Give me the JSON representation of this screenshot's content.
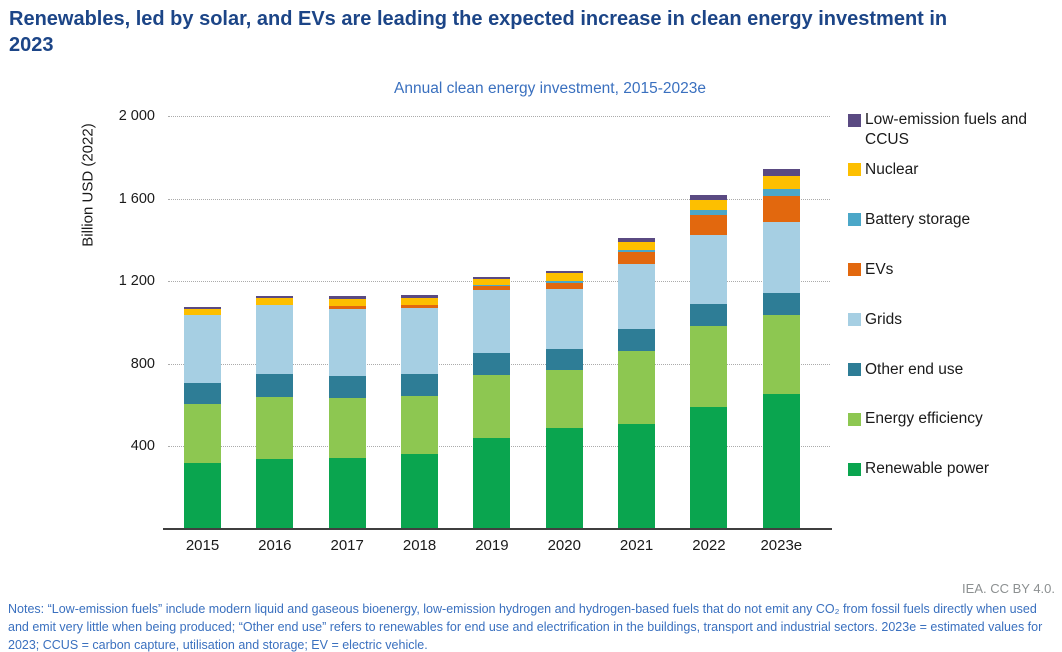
{
  "page": {
    "title": "Renewables, led by solar, and EVs are leading the expected increase in clean energy investment in 2023",
    "attribution": "IEA. CC BY 4.0.",
    "notes": "Notes: “Low-emission fuels” include modern liquid and gaseous bioenergy, low-emission hydrogen and hydrogen-based fuels that do not emit any CO₂ from fossil fuels directly when used and emit very little when being produced; “Other end use” refers to renewables for end use and electrification in the buildings, transport and industrial sectors. 2023e = estimated values for 2023; CCUS = carbon capture, utilisation and storage; EV = electric vehicle."
  },
  "chart_data": {
    "type": "bar",
    "stacked": true,
    "title": "Annual clean energy investment, 2015-2023e",
    "xlabel": "",
    "ylabel": "Billion USD (2022)",
    "ylim": [
      0,
      2000
    ],
    "yticks": [
      400,
      800,
      1200,
      1600,
      2000
    ],
    "grid": "horizontal-dotted",
    "legend_position": "right",
    "legend_order": "top-to-bottom-reverse-of-stack",
    "categories": [
      "2015",
      "2016",
      "2017",
      "2018",
      "2019",
      "2020",
      "2021",
      "2022",
      "2023e"
    ],
    "series": [
      {
        "name": "Renewable power",
        "color": "#0aa54f",
        "values": [
          320,
          340,
          345,
          365,
          443,
          490,
          510,
          590,
          655
        ]
      },
      {
        "name": "Energy efficiency",
        "color": "#8dc751",
        "values": [
          283,
          300,
          290,
          280,
          304,
          278,
          352,
          395,
          380
        ]
      },
      {
        "name": "Other end use",
        "color": "#2e7d96",
        "values": [
          103,
          110,
          108,
          108,
          104,
          105,
          107,
          105,
          110
        ]
      },
      {
        "name": "Grids",
        "color": "#a6cfe3",
        "values": [
          329,
          335,
          324,
          316,
          306,
          288,
          315,
          335,
          340
        ]
      },
      {
        "name": "EVs",
        "color": "#e2680e",
        "values": [
          0,
          0,
          12,
          16,
          22,
          32,
          56,
          97,
          126
        ]
      },
      {
        "name": "Battery storage",
        "color": "#4ba7c8",
        "values": [
          0,
          0,
          0,
          0,
          4,
          9,
          13,
          24,
          36
        ]
      },
      {
        "name": "Nuclear",
        "color": "#fdbf00",
        "values": [
          32,
          32,
          36,
          35,
          29,
          36,
          39,
          49,
          64
        ]
      },
      {
        "name": "Low-emission fuels and CCUS",
        "color": "#5a4a82",
        "values": [
          10,
          13,
          13,
          13,
          10,
          12,
          16,
          22,
          32
        ]
      }
    ],
    "totals": [
      1077,
      1130,
      1128,
      1133,
      1222,
      1250,
      1408,
      1617,
      1743
    ]
  }
}
